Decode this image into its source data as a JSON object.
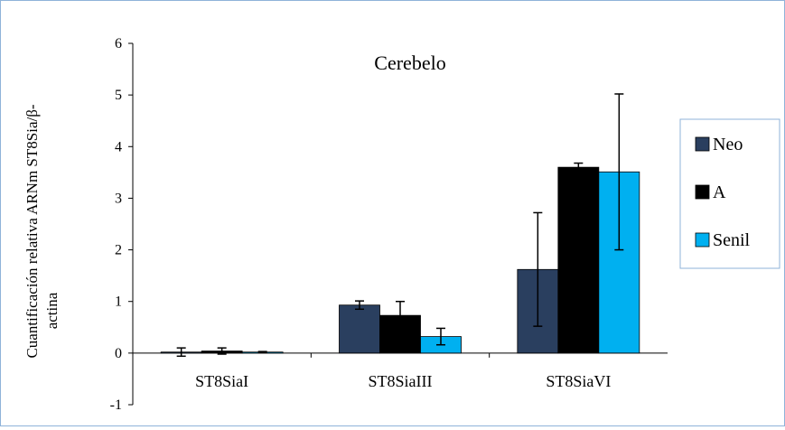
{
  "chart_data": {
    "type": "bar",
    "title": "Cerebelo",
    "ylabel_line1": "Cuantificación relativa ARNm ST8Sia/β-",
    "ylabel_line2": "actina",
    "xlabel": "",
    "ylim": [
      -1,
      6
    ],
    "yticks": [
      -1,
      0,
      1,
      2,
      3,
      4,
      5,
      6
    ],
    "categories": [
      "ST8SiaI",
      "ST8SiaIII",
      "ST8SiaVI"
    ],
    "legend_position": "right",
    "grid": false,
    "series": [
      {
        "name": "Neo",
        "color": "#2a3f5f",
        "values": [
          0.02,
          0.93,
          1.62
        ],
        "errors": [
          0.08,
          0.08,
          1.1
        ]
      },
      {
        "name": "A",
        "color": "#000000",
        "values": [
          0.04,
          0.73,
          3.6
        ],
        "errors": [
          0.06,
          0.27,
          0.08
        ]
      },
      {
        "name": "Senil",
        "color": "#00b0f0",
        "values": [
          0.02,
          0.32,
          3.51
        ],
        "errors": [
          0.01,
          0.16,
          1.51
        ]
      }
    ]
  }
}
